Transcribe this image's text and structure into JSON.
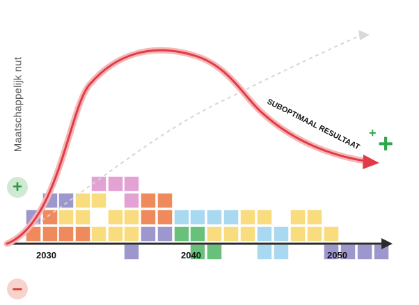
{
  "y_axis_label": "Maatschappelijk nut",
  "x_ticks": [
    "2030",
    "2040",
    "2050"
  ],
  "curve_label": "SUBOPTIMAAL RESULTAAT",
  "plus_symbol": "+",
  "minus_symbol": "−",
  "colors": {
    "curve": "#e23a46",
    "curve_glow": "#f5b7b7",
    "dashed_curve": "#d5d5d5",
    "axis": "#2b2b2b",
    "plus_green": "#2ea74a",
    "block_orange": "#ee8a5c",
    "block_yellow": "#f8dc7d",
    "block_purple": "#9c97cd",
    "block_pink": "#e3a2d4",
    "block_lightblue": "#a9d9f1",
    "block_green": "#68c07a"
  }
}
